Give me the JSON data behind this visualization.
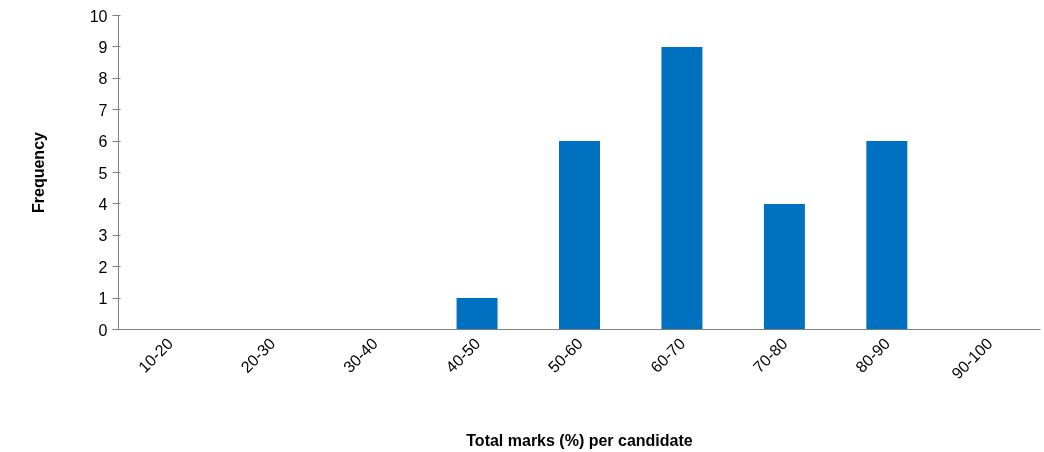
{
  "chart_data": {
    "type": "bar",
    "xlabel": "Total marks (%) per candidate",
    "ylabel": "Frequency",
    "categories": [
      "10-20",
      "20-30",
      "30-40",
      "40-50",
      "50-60",
      "60-70",
      "70-80",
      "80-90",
      "90-100"
    ],
    "values": [
      0,
      0,
      0,
      1,
      6,
      9,
      4,
      6,
      0
    ],
    "color": "#0070c0",
    "ylim": [
      0,
      10
    ],
    "yticks": [
      0,
      1,
      2,
      3,
      4,
      5,
      6,
      7,
      8,
      9,
      10
    ],
    "grid": false
  }
}
